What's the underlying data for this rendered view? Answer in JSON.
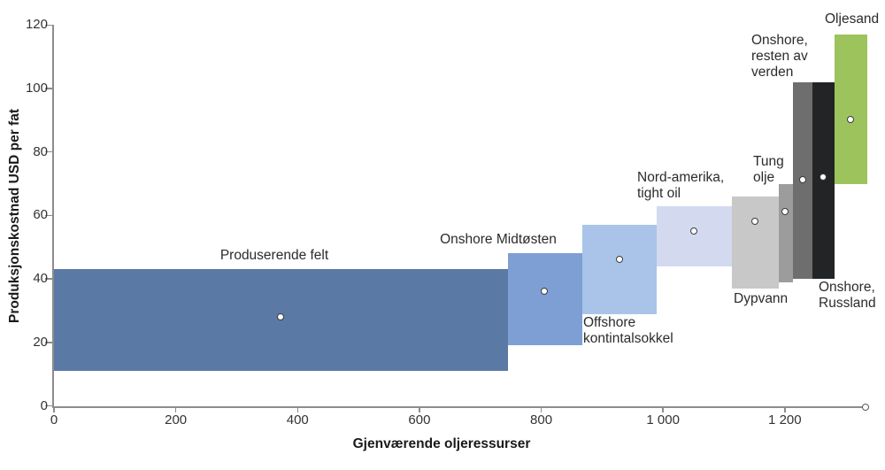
{
  "chart_data": {
    "type": "bar",
    "variant": "supply-cost-curve-floating-variable-width-bars",
    "title": "",
    "xlabel": "Gjenværende oljeressurser",
    "ylabel": "Produksjonskostnad USD per fat",
    "xlim": [
      0,
      1350
    ],
    "ylim": [
      0,
      120
    ],
    "grid": false,
    "legend": "none",
    "x_ticks": [
      {
        "v": 0,
        "label": "0"
      },
      {
        "v": 200,
        "label": "200"
      },
      {
        "v": 400,
        "label": "400"
      },
      {
        "v": 600,
        "label": "600"
      },
      {
        "v": 800,
        "label": "800"
      },
      {
        "v": 1000,
        "label": "1 000"
      },
      {
        "v": 1200,
        "label": "1 200"
      }
    ],
    "y_ticks": [
      {
        "v": 0,
        "label": "0"
      },
      {
        "v": 20,
        "label": "20"
      },
      {
        "v": 40,
        "label": "40"
      },
      {
        "v": 60,
        "label": "60"
      },
      {
        "v": 80,
        "label": "80"
      },
      {
        "v": 100,
        "label": "100"
      },
      {
        "v": 120,
        "label": "120"
      }
    ],
    "axis_end_marker_x": 1334,
    "blocks": [
      {
        "name": "Produserende felt",
        "label_lines": [
          "Produserende felt"
        ],
        "x_start": 0,
        "x_end": 745,
        "cost_min": 11,
        "cost_max": 43,
        "cost_mid": 28,
        "color": "#5B79A5"
      },
      {
        "name": "Onshore Midtøsten",
        "label_lines": [
          "Onshore Midtøsten"
        ],
        "x_start": 745,
        "x_end": 868,
        "cost_min": 19,
        "cost_max": 48,
        "cost_mid": 36,
        "color": "#7D9FD4"
      },
      {
        "name": "Offshore kontintalsokkel",
        "label_lines": [
          "Offshore",
          "kontintalsokkel"
        ],
        "x_start": 868,
        "x_end": 990,
        "cost_min": 29,
        "cost_max": 57,
        "cost_mid": 46,
        "color": "#A9C4E8"
      },
      {
        "name": "Nord-amerika, tight oil",
        "label_lines": [
          "Nord-amerika,",
          "tight oil"
        ],
        "x_start": 990,
        "x_end": 1113,
        "cost_min": 44,
        "cost_max": 63,
        "cost_mid": 55,
        "color": "#D3DAF0"
      },
      {
        "name": "Dypvann",
        "label_lines": [
          "Dypvann"
        ],
        "x_start": 1113,
        "x_end": 1190,
        "cost_min": 37,
        "cost_max": 66,
        "cost_mid": 58,
        "color": "#C8C8C8"
      },
      {
        "name": "Tung olje",
        "label_lines": [
          "Tung",
          "olje"
        ],
        "x_start": 1190,
        "x_end": 1213,
        "cost_min": 39,
        "cost_max": 70,
        "cost_mid": 61,
        "color": "#9C9C9C"
      },
      {
        "name": "Onshore, resten av verden",
        "label_lines": [
          "Onshore,",
          "resten av",
          "verden"
        ],
        "x_start": 1213,
        "x_end": 1246,
        "cost_min": 40,
        "cost_max": 102,
        "cost_mid": 71,
        "color": "#6E6E6E"
      },
      {
        "name": "Onshore, Russland",
        "label_lines": [
          "Onshore,",
          "Russland"
        ],
        "x_start": 1246,
        "x_end": 1282,
        "cost_min": 40,
        "cost_max": 102,
        "cost_mid": 72,
        "color": "#232426"
      },
      {
        "name": "Oljesand",
        "label_lines": [
          "Oljesand"
        ],
        "x_start": 1282,
        "x_end": 1336,
        "cost_min": 70,
        "cost_max": 117,
        "cost_mid": 90,
        "color": "#9DC45C"
      }
    ]
  }
}
